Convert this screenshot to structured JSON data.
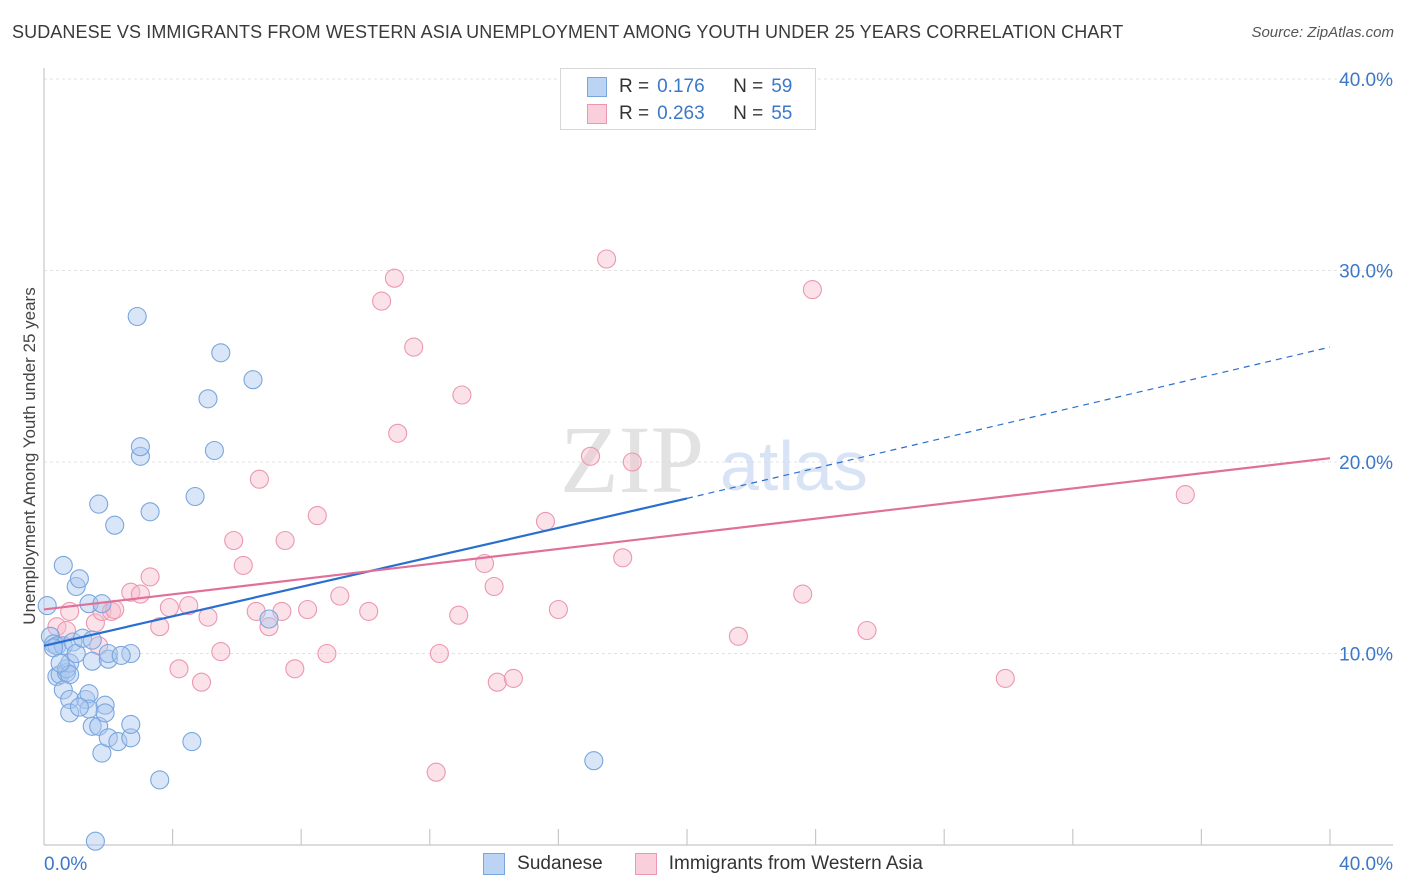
{
  "header": {
    "title": "SUDANESE VS IMMIGRANTS FROM WESTERN ASIA UNEMPLOYMENT AMONG YOUTH UNDER 25 YEARS CORRELATION CHART",
    "source": "Source: ZipAtlas.com"
  },
  "watermark": {
    "zip": "ZIP",
    "atlas": "atlas"
  },
  "legend_top": {
    "r_label": "R =",
    "n_label": "N =",
    "rows": [
      {
        "r": "0.176",
        "n": "59"
      },
      {
        "r": "0.263",
        "n": "55"
      }
    ]
  },
  "colors": {
    "blue_fill": "#aac8ef",
    "blue_stroke": "#7aa6de",
    "blue_line": "#2a6fd0",
    "pink_fill": "#f6bccc",
    "pink_stroke": "#ec97b1",
    "pink_line": "#e0709a",
    "tick_text": "#3c78c8"
  },
  "chart_data": {
    "type": "scatter",
    "title": "SUDANESE VS IMMIGRANTS FROM WESTERN ASIA UNEMPLOYMENT AMONG YOUTH UNDER 25 YEARS CORRELATION CHART",
    "xlabel": "",
    "ylabel": "Unemployment Among Youth under 25 years",
    "xlim": [
      0,
      40
    ],
    "ylim": [
      0,
      40
    ],
    "x_tick_labels": [
      "0.0%",
      "40.0%"
    ],
    "y_ticks": [
      {
        "value": 10,
        "label": "10.0%"
      },
      {
        "value": 20,
        "label": "20.0%"
      },
      {
        "value": 30,
        "label": "30.0%"
      },
      {
        "value": 40,
        "label": "40.0%"
      }
    ],
    "grid": true,
    "legend_position": "bottom",
    "series": [
      {
        "name": "Sudanese",
        "color": "blue",
        "R": 0.176,
        "N": 59,
        "trend": {
          "x0": 0,
          "y0": 10.4,
          "x1": 20,
          "y1": 18.1,
          "dashed_to_x": 40,
          "dashed_to_y": 26.0
        },
        "points": [
          [
            0.1,
            12.5
          ],
          [
            0.2,
            10.9
          ],
          [
            0.3,
            10.5
          ],
          [
            0.4,
            10.4
          ],
          [
            0.6,
            10.4
          ],
          [
            0.9,
            10.6
          ],
          [
            0.4,
            8.8
          ],
          [
            0.5,
            8.9
          ],
          [
            0.7,
            9.0
          ],
          [
            0.7,
            9.2
          ],
          [
            0.8,
            9.5
          ],
          [
            0.8,
            8.9
          ],
          [
            0.6,
            8.1
          ],
          [
            0.8,
            7.6
          ],
          [
            0.8,
            6.9
          ],
          [
            0.6,
            14.6
          ],
          [
            1.0,
            13.5
          ],
          [
            1.1,
            13.9
          ],
          [
            1.0,
            10.0
          ],
          [
            1.2,
            10.8
          ],
          [
            1.4,
            12.6
          ],
          [
            1.5,
            10.7
          ],
          [
            1.5,
            9.6
          ],
          [
            1.3,
            7.6
          ],
          [
            1.4,
            7.9
          ],
          [
            1.4,
            7.1
          ],
          [
            1.5,
            6.2
          ],
          [
            1.7,
            6.2
          ],
          [
            1.8,
            4.8
          ],
          [
            1.8,
            12.6
          ],
          [
            2.0,
            9.7
          ],
          [
            2.0,
            10.0
          ],
          [
            2.0,
            5.6
          ],
          [
            1.9,
            7.3
          ],
          [
            1.9,
            6.9
          ],
          [
            2.3,
            5.4
          ],
          [
            2.7,
            5.6
          ],
          [
            2.7,
            6.3
          ],
          [
            2.7,
            10.0
          ],
          [
            1.7,
            17.8
          ],
          [
            2.2,
            16.7
          ],
          [
            2.9,
            27.6
          ],
          [
            3.0,
            20.3
          ],
          [
            3.0,
            20.8
          ],
          [
            3.3,
            17.4
          ],
          [
            3.6,
            3.4
          ],
          [
            4.7,
            18.2
          ],
          [
            5.1,
            23.3
          ],
          [
            5.3,
            20.6
          ],
          [
            5.5,
            25.7
          ],
          [
            6.5,
            24.3
          ],
          [
            7.0,
            11.8
          ],
          [
            4.6,
            5.4
          ],
          [
            17.1,
            4.4
          ],
          [
            1.6,
            0.2
          ],
          [
            0.3,
            10.3
          ],
          [
            0.5,
            9.5
          ],
          [
            1.1,
            7.2
          ],
          [
            2.4,
            9.9
          ]
        ]
      },
      {
        "name": "Immigrants from Western Asia",
        "color": "pink",
        "R": 0.263,
        "N": 55,
        "trend": {
          "x0": 0,
          "y0": 12.3,
          "x1": 40,
          "y1": 20.2
        },
        "points": [
          [
            0.4,
            11.4
          ],
          [
            0.7,
            11.2
          ],
          [
            0.8,
            12.2
          ],
          [
            1.6,
            11.6
          ],
          [
            1.7,
            10.4
          ],
          [
            1.8,
            12.2
          ],
          [
            2.1,
            12.2
          ],
          [
            2.2,
            12.3
          ],
          [
            2.7,
            13.2
          ],
          [
            3.0,
            13.1
          ],
          [
            3.3,
            14.0
          ],
          [
            3.6,
            11.4
          ],
          [
            3.9,
            12.4
          ],
          [
            4.2,
            9.2
          ],
          [
            4.5,
            12.5
          ],
          [
            4.9,
            8.5
          ],
          [
            5.1,
            11.9
          ],
          [
            5.5,
            10.1
          ],
          [
            5.9,
            15.9
          ],
          [
            6.2,
            14.6
          ],
          [
            6.6,
            12.2
          ],
          [
            6.7,
            19.1
          ],
          [
            7.0,
            11.4
          ],
          [
            7.4,
            12.2
          ],
          [
            7.5,
            15.9
          ],
          [
            7.8,
            9.2
          ],
          [
            8.2,
            12.3
          ],
          [
            8.5,
            17.2
          ],
          [
            8.8,
            10.0
          ],
          [
            9.2,
            13.0
          ],
          [
            10.1,
            12.2
          ],
          [
            10.5,
            28.4
          ],
          [
            10.9,
            29.6
          ],
          [
            11.0,
            21.5
          ],
          [
            11.5,
            26.0
          ],
          [
            12.2,
            3.8
          ],
          [
            12.3,
            10.0
          ],
          [
            12.9,
            12.0
          ],
          [
            13.0,
            23.5
          ],
          [
            13.7,
            14.7
          ],
          [
            14.0,
            13.5
          ],
          [
            14.1,
            8.5
          ],
          [
            14.6,
            8.7
          ],
          [
            15.6,
            16.9
          ],
          [
            16.0,
            12.3
          ],
          [
            17.0,
            20.3
          ],
          [
            17.5,
            30.6
          ],
          [
            18.0,
            15.0
          ],
          [
            18.3,
            20.0
          ],
          [
            21.6,
            10.9
          ],
          [
            23.6,
            13.1
          ],
          [
            23.9,
            29.0
          ],
          [
            25.6,
            11.2
          ],
          [
            29.9,
            8.7
          ],
          [
            35.5,
            18.3
          ]
        ]
      }
    ]
  },
  "axis": {
    "ylabel": "Unemployment Among Youth under 25 years"
  },
  "legend_bottom": {
    "items": [
      "Sudanese",
      "Immigrants from Western Asia"
    ]
  }
}
